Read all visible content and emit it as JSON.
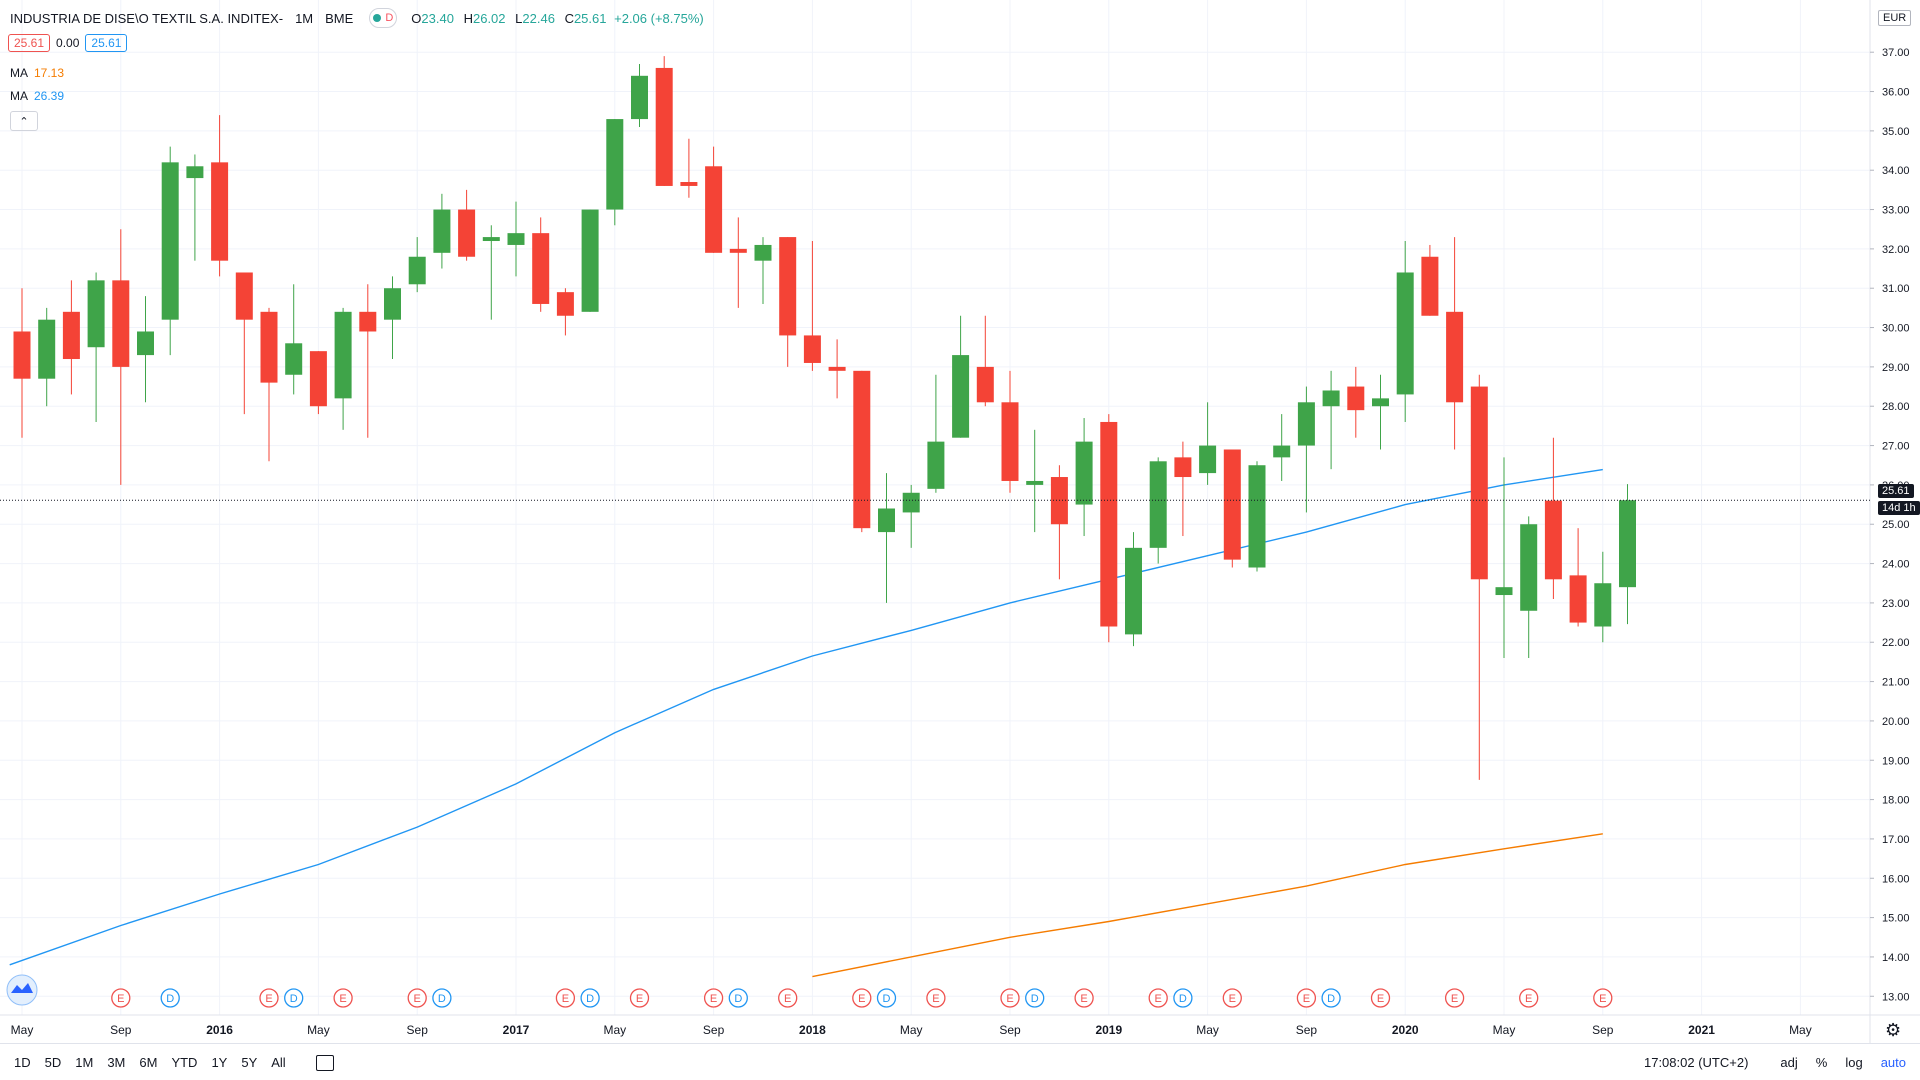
{
  "header": {
    "title": "INDUSTRIA DE DISE\\O TEXTIL S.A. INDITEX-",
    "interval": "1M",
    "exchange": "BME",
    "flag_letter": "D",
    "open_label": "O",
    "open": "23.40",
    "high_label": "H",
    "high": "26.02",
    "low_label": "L",
    "low": "22.46",
    "close_label": "C",
    "close": "25.61",
    "change": "+2.06 (+8.75%)"
  },
  "price_box": {
    "bid": "25.61",
    "spread": "0.00",
    "ask": "25.61"
  },
  "indicators": [
    {
      "label": "MA",
      "value": "17.13",
      "color": "#f57c00"
    },
    {
      "label": "MA",
      "value": "26.39",
      "color": "#2196f3"
    }
  ],
  "collapse_icon": "chevron-up-icon",
  "currency": "EUR",
  "last_price_label": "25.61",
  "countdown_label": "14d 1h",
  "timeframes": [
    "1D",
    "5D",
    "1M",
    "3M",
    "6M",
    "YTD",
    "1Y",
    "5Y",
    "All"
  ],
  "footer": {
    "time": "17:08:02 (UTC+2)",
    "adj": "adj",
    "percent": "%",
    "log": "log",
    "auto": "auto"
  },
  "colors": {
    "up": "#26a69a",
    "down": "#ef5350",
    "candle_up": "#3fa449",
    "candle_down": "#f44336",
    "ma_long": "#2196f3",
    "ma_short": "#f57c00"
  },
  "chart_data": {
    "type": "candlestick",
    "title": "INDUSTRIA DE DISE\\O TEXTIL S.A. INDITEX-",
    "ylim": [
      12.6,
      38.2
    ],
    "y_ticks": [
      "13.00",
      "14.00",
      "15.00",
      "16.00",
      "17.00",
      "18.00",
      "19.00",
      "20.00",
      "21.00",
      "22.00",
      "23.00",
      "24.00",
      "25.00",
      "26.00",
      "27.00",
      "28.00",
      "29.00",
      "30.00",
      "31.00",
      "32.00",
      "33.00",
      "34.00",
      "35.00",
      "36.00",
      "37.00"
    ],
    "x_labels": [
      {
        "i": 0,
        "label": "May",
        "bold": false
      },
      {
        "i": 4,
        "label": "Sep",
        "bold": false
      },
      {
        "i": 8,
        "label": "2016",
        "bold": true
      },
      {
        "i": 12,
        "label": "May",
        "bold": false
      },
      {
        "i": 16,
        "label": "Sep",
        "bold": false
      },
      {
        "i": 20,
        "label": "2017",
        "bold": true
      },
      {
        "i": 24,
        "label": "May",
        "bold": false
      },
      {
        "i": 28,
        "label": "Sep",
        "bold": false
      },
      {
        "i": 32,
        "label": "2018",
        "bold": true
      },
      {
        "i": 36,
        "label": "May",
        "bold": false
      },
      {
        "i": 40,
        "label": "Sep",
        "bold": false
      },
      {
        "i": 44,
        "label": "2019",
        "bold": true
      },
      {
        "i": 48,
        "label": "May",
        "bold": false
      },
      {
        "i": 52,
        "label": "Sep",
        "bold": false
      },
      {
        "i": 56,
        "label": "2020",
        "bold": true
      },
      {
        "i": 60,
        "label": "May",
        "bold": false
      },
      {
        "i": 64,
        "label": "Sep",
        "bold": false
      },
      {
        "i": 68,
        "label": "2021",
        "bold": true
      },
      {
        "i": 72,
        "label": "May",
        "bold": false
      }
    ],
    "candles": [
      {
        "o": 29.9,
        "h": 31.0,
        "l": 27.2,
        "c": 28.7
      },
      {
        "o": 28.7,
        "h": 30.5,
        "l": 28.0,
        "c": 30.2
      },
      {
        "o": 30.4,
        "h": 31.2,
        "l": 28.3,
        "c": 29.2
      },
      {
        "o": 29.5,
        "h": 31.4,
        "l": 27.6,
        "c": 31.2
      },
      {
        "o": 31.2,
        "h": 32.5,
        "l": 26.0,
        "c": 29.0
      },
      {
        "o": 29.3,
        "h": 30.8,
        "l": 28.1,
        "c": 29.9
      },
      {
        "o": 30.2,
        "h": 34.6,
        "l": 29.3,
        "c": 34.2
      },
      {
        "o": 33.8,
        "h": 34.4,
        "l": 31.7,
        "c": 34.1
      },
      {
        "o": 34.2,
        "h": 35.4,
        "l": 31.3,
        "c": 31.7
      },
      {
        "o": 31.4,
        "h": 31.4,
        "l": 27.8,
        "c": 30.2
      },
      {
        "o": 30.4,
        "h": 30.5,
        "l": 26.6,
        "c": 28.6
      },
      {
        "o": 28.8,
        "h": 31.1,
        "l": 28.3,
        "c": 29.6
      },
      {
        "o": 29.4,
        "h": 29.4,
        "l": 27.8,
        "c": 28.0
      },
      {
        "o": 28.2,
        "h": 30.5,
        "l": 27.4,
        "c": 30.4
      },
      {
        "o": 30.4,
        "h": 31.1,
        "l": 27.2,
        "c": 29.9
      },
      {
        "o": 30.2,
        "h": 31.3,
        "l": 29.2,
        "c": 31.0
      },
      {
        "o": 31.1,
        "h": 32.3,
        "l": 30.9,
        "c": 31.8
      },
      {
        "o": 31.9,
        "h": 33.4,
        "l": 31.5,
        "c": 33.0
      },
      {
        "o": 33.0,
        "h": 33.5,
        "l": 31.7,
        "c": 31.8
      },
      {
        "o": 32.2,
        "h": 32.6,
        "l": 30.2,
        "c": 32.3
      },
      {
        "o": 32.1,
        "h": 33.2,
        "l": 31.3,
        "c": 32.4
      },
      {
        "o": 32.4,
        "h": 32.8,
        "l": 30.4,
        "c": 30.6
      },
      {
        "o": 30.9,
        "h": 31.0,
        "l": 29.8,
        "c": 30.3
      },
      {
        "o": 30.4,
        "h": 33.0,
        "l": 30.4,
        "c": 33.0
      },
      {
        "o": 33.0,
        "h": 35.3,
        "l": 32.6,
        "c": 35.3
      },
      {
        "o": 35.3,
        "h": 36.7,
        "l": 35.1,
        "c": 36.4
      },
      {
        "o": 36.6,
        "h": 36.9,
        "l": 33.6,
        "c": 33.6
      },
      {
        "o": 33.7,
        "h": 34.8,
        "l": 33.3,
        "c": 33.6
      },
      {
        "o": 34.1,
        "h": 34.6,
        "l": 31.9,
        "c": 31.9
      },
      {
        "o": 32.0,
        "h": 32.8,
        "l": 30.5,
        "c": 31.9
      },
      {
        "o": 31.7,
        "h": 32.3,
        "l": 30.6,
        "c": 32.1
      },
      {
        "o": 32.3,
        "h": 32.3,
        "l": 29.0,
        "c": 29.8
      },
      {
        "o": 29.8,
        "h": 32.2,
        "l": 28.9,
        "c": 29.1
      },
      {
        "o": 29.0,
        "h": 29.7,
        "l": 28.2,
        "c": 28.9
      },
      {
        "o": 28.9,
        "h": 28.9,
        "l": 24.8,
        "c": 24.9
      },
      {
        "o": 24.8,
        "h": 26.3,
        "l": 23.0,
        "c": 25.4
      },
      {
        "o": 25.3,
        "h": 26.0,
        "l": 24.4,
        "c": 25.8
      },
      {
        "o": 25.9,
        "h": 28.8,
        "l": 25.8,
        "c": 27.1
      },
      {
        "o": 27.2,
        "h": 30.3,
        "l": 27.2,
        "c": 29.3
      },
      {
        "o": 29.0,
        "h": 30.3,
        "l": 28.0,
        "c": 28.1
      },
      {
        "o": 28.1,
        "h": 28.9,
        "l": 25.8,
        "c": 26.1
      },
      {
        "o": 26.0,
        "h": 27.4,
        "l": 24.8,
        "c": 26.1
      },
      {
        "o": 26.2,
        "h": 26.5,
        "l": 23.6,
        "c": 25.0
      },
      {
        "o": 25.5,
        "h": 27.7,
        "l": 24.7,
        "c": 27.1
      },
      {
        "o": 27.6,
        "h": 27.8,
        "l": 22.0,
        "c": 22.4
      },
      {
        "o": 22.2,
        "h": 24.8,
        "l": 21.9,
        "c": 24.4
      },
      {
        "o": 24.4,
        "h": 26.7,
        "l": 24.0,
        "c": 26.6
      },
      {
        "o": 26.7,
        "h": 27.1,
        "l": 24.7,
        "c": 26.2
      },
      {
        "o": 26.3,
        "h": 28.1,
        "l": 26.0,
        "c": 27.0
      },
      {
        "o": 26.9,
        "h": 26.9,
        "l": 23.9,
        "c": 24.1
      },
      {
        "o": 23.9,
        "h": 26.6,
        "l": 23.8,
        "c": 26.5
      },
      {
        "o": 26.7,
        "h": 27.8,
        "l": 26.1,
        "c": 27.0
      },
      {
        "o": 27.0,
        "h": 28.5,
        "l": 25.3,
        "c": 28.1
      },
      {
        "o": 28.0,
        "h": 28.9,
        "l": 26.4,
        "c": 28.4
      },
      {
        "o": 28.5,
        "h": 29.0,
        "l": 27.2,
        "c": 27.9
      },
      {
        "o": 28.0,
        "h": 28.8,
        "l": 26.9,
        "c": 28.2
      },
      {
        "o": 28.3,
        "h": 32.2,
        "l": 27.6,
        "c": 31.4
      },
      {
        "o": 31.8,
        "h": 32.1,
        "l": 30.3,
        "c": 30.3
      },
      {
        "o": 30.4,
        "h": 32.3,
        "l": 26.9,
        "c": 28.1
      },
      {
        "o": 28.5,
        "h": 28.8,
        "l": 18.5,
        "c": 23.6
      },
      {
        "o": 23.2,
        "h": 26.7,
        "l": 21.6,
        "c": 23.4
      },
      {
        "o": 22.8,
        "h": 25.2,
        "l": 21.6,
        "c": 25.0
      },
      {
        "o": 25.6,
        "h": 27.2,
        "l": 23.1,
        "c": 23.6
      },
      {
        "o": 23.7,
        "h": 24.9,
        "l": 22.4,
        "c": 22.5
      },
      {
        "o": 22.4,
        "h": 24.3,
        "l": 22.0,
        "c": 23.5
      },
      {
        "o": 23.4,
        "h": 26.02,
        "l": 22.46,
        "c": 25.61
      }
    ],
    "series": [
      {
        "name": "MA",
        "type": "line",
        "value_label": "26.39",
        "points": [
          {
            "i": -0.5,
            "v": 13.8
          },
          {
            "i": 4,
            "v": 14.8
          },
          {
            "i": 8,
            "v": 15.6
          },
          {
            "i": 12,
            "v": 16.35
          },
          {
            "i": 16,
            "v": 17.3
          },
          {
            "i": 20,
            "v": 18.4
          },
          {
            "i": 24,
            "v": 19.7
          },
          {
            "i": 28,
            "v": 20.8
          },
          {
            "i": 32,
            "v": 21.65
          },
          {
            "i": 36,
            "v": 22.3
          },
          {
            "i": 40,
            "v": 23.0
          },
          {
            "i": 44,
            "v": 23.6
          },
          {
            "i": 48,
            "v": 24.2
          },
          {
            "i": 52,
            "v": 24.8
          },
          {
            "i": 56,
            "v": 25.5
          },
          {
            "i": 60,
            "v": 26.0
          },
          {
            "i": 64,
            "v": 26.39
          }
        ]
      },
      {
        "name": "MA",
        "type": "line",
        "value_label": "17.13",
        "points": [
          {
            "i": 32,
            "v": 13.5
          },
          {
            "i": 36,
            "v": 14.0
          },
          {
            "i": 40,
            "v": 14.5
          },
          {
            "i": 44,
            "v": 14.9
          },
          {
            "i": 48,
            "v": 15.35
          },
          {
            "i": 52,
            "v": 15.8
          },
          {
            "i": 56,
            "v": 16.35
          },
          {
            "i": 60,
            "v": 16.75
          },
          {
            "i": 64,
            "v": 17.13
          }
        ]
      }
    ],
    "events": [
      {
        "i": 4,
        "t": "E"
      },
      {
        "i": 6,
        "t": "D"
      },
      {
        "i": 10,
        "t": "E"
      },
      {
        "i": 11,
        "t": "D"
      },
      {
        "i": 13,
        "t": "E"
      },
      {
        "i": 16,
        "t": "E"
      },
      {
        "i": 17,
        "t": "D"
      },
      {
        "i": 22,
        "t": "E"
      },
      {
        "i": 23,
        "t": "D"
      },
      {
        "i": 25,
        "t": "E"
      },
      {
        "i": 28,
        "t": "E"
      },
      {
        "i": 29,
        "t": "D"
      },
      {
        "i": 31,
        "t": "E"
      },
      {
        "i": 34,
        "t": "E"
      },
      {
        "i": 35,
        "t": "D"
      },
      {
        "i": 37,
        "t": "E"
      },
      {
        "i": 40,
        "t": "E"
      },
      {
        "i": 41,
        "t": "D"
      },
      {
        "i": 43,
        "t": "E"
      },
      {
        "i": 46,
        "t": "E"
      },
      {
        "i": 47,
        "t": "D"
      },
      {
        "i": 49,
        "t": "E"
      },
      {
        "i": 52,
        "t": "E"
      },
      {
        "i": 53,
        "t": "D"
      },
      {
        "i": 55,
        "t": "E"
      },
      {
        "i": 58,
        "t": "E"
      },
      {
        "i": 61,
        "t": "E"
      },
      {
        "i": 64,
        "t": "E"
      }
    ],
    "last_price": 25.61,
    "grid": true,
    "legend": "top-left"
  }
}
